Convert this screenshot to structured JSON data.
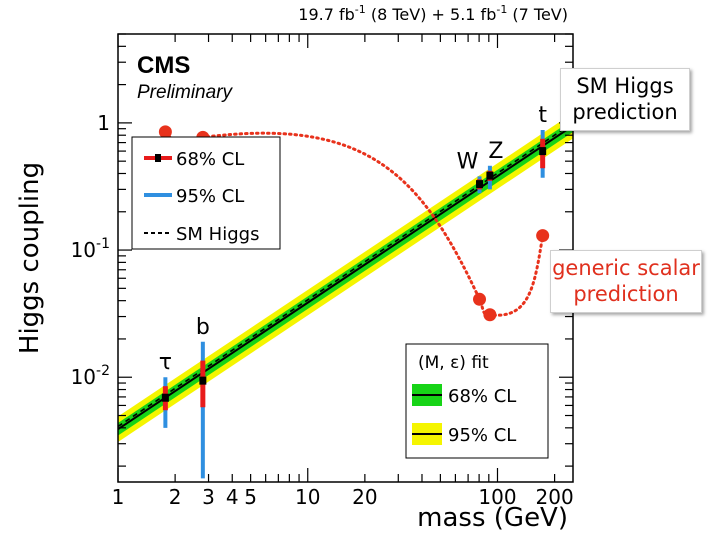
{
  "header": {
    "lumi_main": "19.7 fb",
    "lumi_exp1": "-1",
    "lumi_mid": " (8 TeV) +  5.1 fb",
    "lumi_exp2": "-1",
    "lumi_end": " (7 TeV)"
  },
  "branding": {
    "experiment": "CMS",
    "status": "Preliminary"
  },
  "annotations": {
    "sm_prediction": [
      "SM Higgs",
      "prediction"
    ],
    "generic_prediction": [
      "generic scalar",
      "prediction"
    ]
  },
  "colors": {
    "band68": "#17d417",
    "band95": "#f5f500",
    "err68": "#e81b1b",
    "err95": "#2f8fe0",
    "generic": "#e8321c",
    "line": "#000000"
  },
  "chart_data": {
    "type": "line",
    "xlabel": "mass (GeV)",
    "ylabel": "Higgs coupling",
    "xscale": "log",
    "yscale": "log",
    "xlim": [
      1,
      250
    ],
    "ylim": [
      0.0015,
      5
    ],
    "x_tick_labels": [
      {
        "v": 1,
        "t": "1"
      },
      {
        "v": 2,
        "t": "2"
      },
      {
        "v": 3,
        "t": "3"
      },
      {
        "v": 4,
        "t": "4"
      },
      {
        "v": 5,
        "t": "5"
      },
      {
        "v": 10,
        "t": "10"
      },
      {
        "v": 20,
        "t": "20"
      },
      {
        "v": 100,
        "t": "100"
      },
      {
        "v": 200,
        "t": "200"
      }
    ],
    "y_tick_labels": [
      {
        "v": 1,
        "base": "1",
        "exp": ""
      },
      {
        "v": 0.1,
        "base": "10",
        "exp": "-1"
      },
      {
        "v": 0.01,
        "base": "10",
        "exp": "-2"
      }
    ],
    "fit_line": {
      "x": [
        1,
        250
      ],
      "y": [
        0.0039,
        0.95
      ]
    },
    "sm_line": {
      "x": [
        1,
        250
      ],
      "y": [
        0.0041,
        1.0
      ]
    },
    "band68_halfwidth_factor": 1.12,
    "band95_halfwidth_factor": 1.26,
    "particles": [
      {
        "name": "τ",
        "mass": 1.777,
        "coupling": 0.0069,
        "ci68": [
          0.0055,
          0.0085
        ],
        "ci95": [
          0.004,
          0.01
        ]
      },
      {
        "name": "b",
        "mass": 2.8,
        "coupling": 0.0094,
        "ci68": [
          0.0058,
          0.0135
        ],
        "ci95": [
          0.0016,
          0.019
        ]
      },
      {
        "name": "W",
        "mass": 80.4,
        "coupling": 0.33,
        "ci68": [
          0.3,
          0.36
        ],
        "ci95": [
          0.28,
          0.38
        ]
      },
      {
        "name": "Z",
        "mass": 91.2,
        "coupling": 0.385,
        "ci68": [
          0.35,
          0.42
        ],
        "ci95": [
          0.3,
          0.46
        ]
      },
      {
        "name": "t",
        "mass": 173,
        "coupling": 0.6,
        "ci68": [
          0.44,
          0.75
        ],
        "ci95": [
          0.37,
          0.88
        ]
      }
    ],
    "generic_scalar": {
      "points": [
        {
          "x": 1.777,
          "y": 0.85
        },
        {
          "x": 2.8,
          "y": 0.77
        },
        {
          "x": 80.4,
          "y": 0.041
        },
        {
          "x": 91.2,
          "y": 0.031
        },
        {
          "x": 173,
          "y": 0.13
        }
      ]
    },
    "legend_left": {
      "placement": "top-left",
      "entries": [
        {
          "label": "68% CL",
          "kind": "err68"
        },
        {
          "label": "95% CL",
          "kind": "err95"
        },
        {
          "label": "SM Higgs",
          "kind": "dashed"
        }
      ]
    },
    "legend_right": {
      "placement": "bottom-right",
      "title": "(M, ε) fit",
      "entries": [
        {
          "label": "68% CL",
          "kind": "band68"
        },
        {
          "label": "95% CL",
          "kind": "band95"
        }
      ]
    }
  }
}
